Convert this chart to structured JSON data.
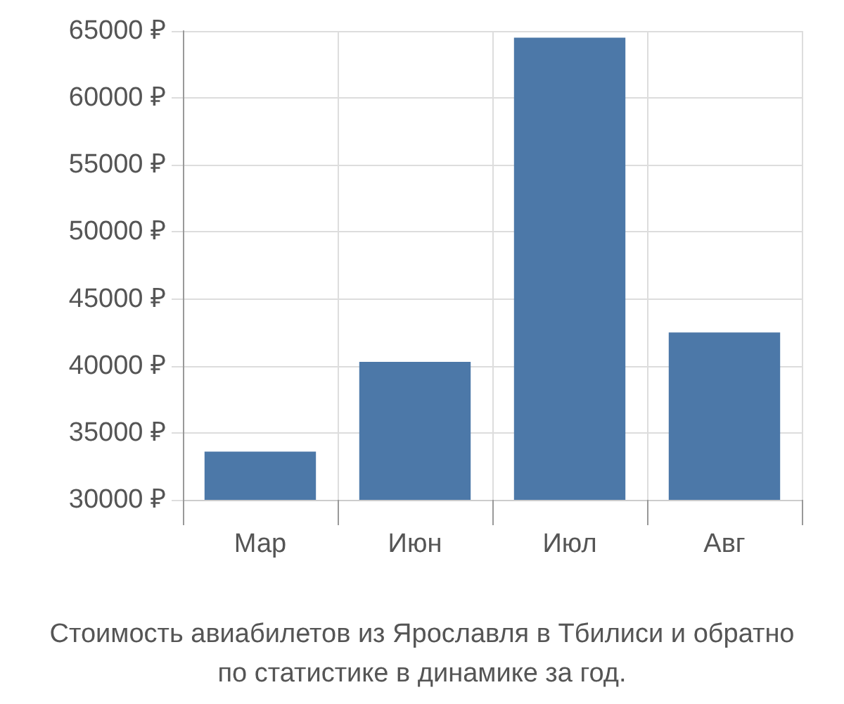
{
  "chart_data": {
    "type": "bar",
    "categories": [
      "Мар",
      "Июн",
      "Июл",
      "Авг"
    ],
    "values": [
      33600,
      40300,
      64500,
      42500
    ],
    "color": "#4c78a8",
    "ylim": [
      30000,
      65000
    ],
    "yticks": [
      {
        "value": 30000,
        "label": "30000 ₽"
      },
      {
        "value": 35000,
        "label": "35000 ₽"
      },
      {
        "value": 40000,
        "label": "40000 ₽"
      },
      {
        "value": 45000,
        "label": "45000 ₽"
      },
      {
        "value": 50000,
        "label": "50000 ₽"
      },
      {
        "value": 55000,
        "label": "55000 ₽"
      },
      {
        "value": 60000,
        "label": "60000 ₽"
      },
      {
        "value": 65000,
        "label": "65000 ₽"
      }
    ],
    "grid": true,
    "annotations": [
      "Стоимость авиабилетов из Ярославля в Тбилиси и обратно",
      "по статистике в динамике за год."
    ]
  }
}
